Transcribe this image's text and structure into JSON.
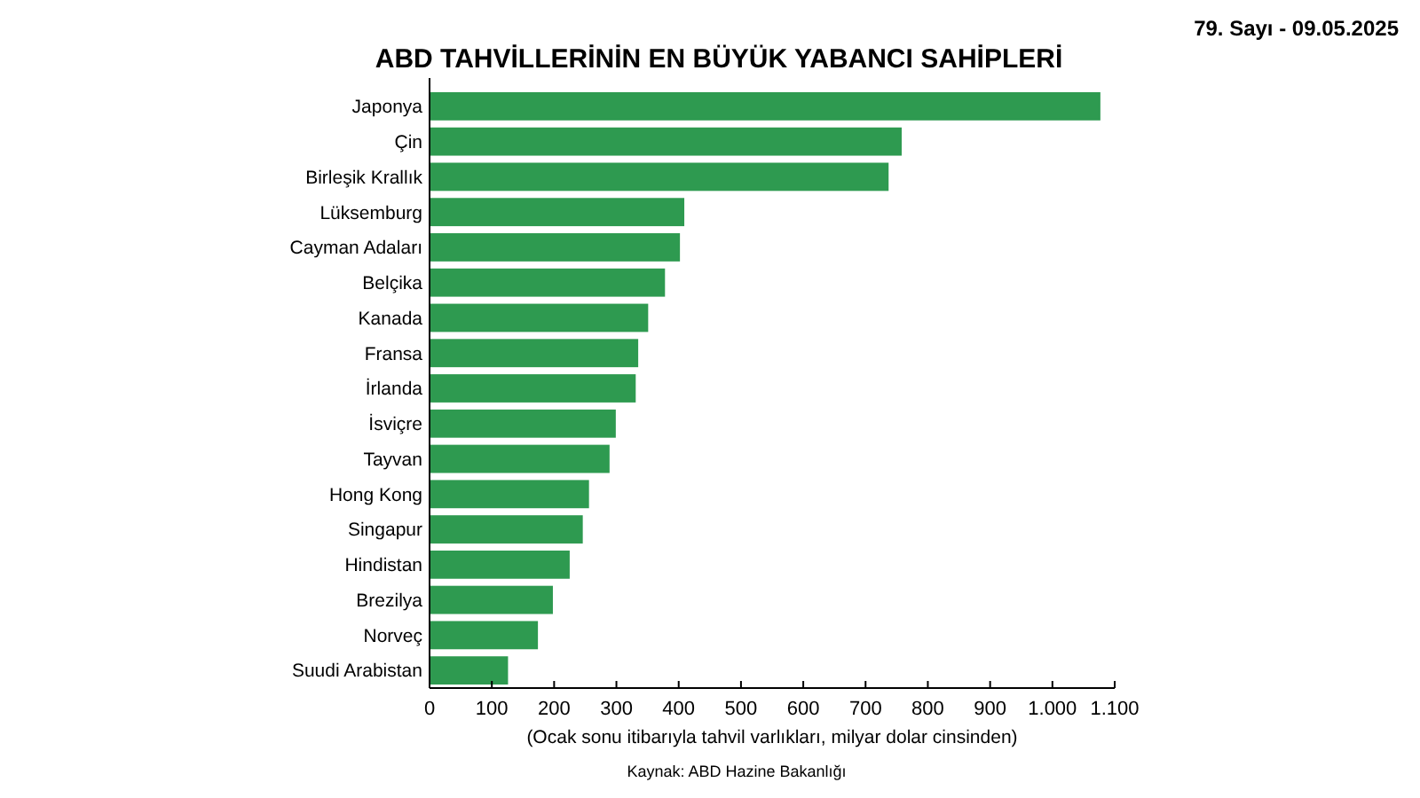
{
  "chart_data": {
    "type": "bar",
    "orientation": "horizontal",
    "title": "ABD TAHVİLLERİNİN EN BÜYÜK YABANCI SAHİPLERİ",
    "xlabel": "(Ocak sonu itibarıyla tahvil varlıkları, milyar dolar cinsinden)",
    "categories": [
      "Japonya",
      "Çin",
      "Birleşik Krallık",
      "Lüksemburg",
      "Cayman Adaları",
      "Belçika",
      "Kanada",
      "Fransa",
      "İrlanda",
      "İsviçre",
      "Tayvan",
      "Hong Kong",
      "Singapur",
      "Hindistan",
      "Brezilya",
      "Norveç",
      "Suudi Arabistan"
    ],
    "values": [
      1077,
      758,
      737,
      409,
      402,
      378,
      351,
      335,
      331,
      299,
      289,
      256,
      246,
      225,
      198,
      174,
      126
    ],
    "color": "#2e9a50",
    "xlim": [
      0,
      1100
    ],
    "xticks": [
      0,
      100,
      200,
      300,
      400,
      500,
      600,
      700,
      800,
      900,
      {
        "value": 1000,
        "label": "1.000"
      },
      {
        "value": 1100,
        "label": "1.100"
      }
    ],
    "grid": false,
    "annotations": [
      "79. Sayı - 09.05.2025",
      "Kaynak: ABD Hazine Bakanlığı"
    ]
  }
}
